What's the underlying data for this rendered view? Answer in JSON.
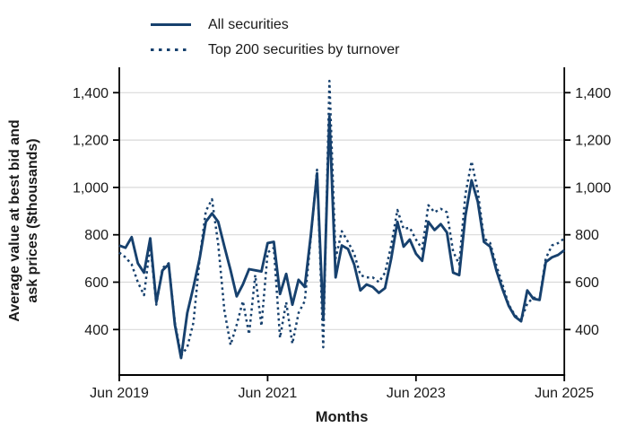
{
  "legend": [
    {
      "label": "All securities",
      "style": "solid"
    },
    {
      "label": "Top 200 securities by turnover",
      "style": "dotted"
    }
  ],
  "y_axis": {
    "title_line1": "Average value at best bid and",
    "title_line2": "ask prices ($thousands)",
    "ticks": [
      {
        "value": 400,
        "label": "400"
      },
      {
        "value": 600,
        "label": "600"
      },
      {
        "value": 800,
        "label": "800"
      },
      {
        "value": 1000,
        "label": "1,000"
      },
      {
        "value": 1200,
        "label": "1,200"
      },
      {
        "value": 1400,
        "label": "1,400"
      }
    ]
  },
  "x_axis": {
    "title": "Months",
    "ticks": [
      {
        "index": 0,
        "label": "Jun 2019"
      },
      {
        "index": 24,
        "label": "Jun 2021"
      },
      {
        "index": 48,
        "label": "Jun 2023"
      },
      {
        "index": 72,
        "label": "Jun 2025"
      }
    ]
  },
  "colors": {
    "line": "#17416e",
    "grid": "#d9d9d9",
    "axis": "#000000",
    "text": "#1a1a1a"
  },
  "chart_data": {
    "type": "line",
    "title": "",
    "xlabel": "Months",
    "ylabel": "Average value at best bid and ask prices ($thousands)",
    "x_start": "Jun 2019",
    "x_end": "Jun 2025",
    "x_frequency": "monthly",
    "n_points": 73,
    "ylim": [
      250,
      1500
    ],
    "y_ticks": [
      400,
      600,
      800,
      1000,
      1200,
      1400
    ],
    "grid": "horizontal",
    "legend_position": "top-left",
    "series": [
      {
        "name": "All securities",
        "line_style": "solid",
        "values": [
          755,
          745,
          790,
          680,
          640,
          785,
          515,
          650,
          675,
          420,
          280,
          470,
          580,
          700,
          855,
          890,
          855,
          750,
          650,
          540,
          590,
          655,
          650,
          645,
          765,
          770,
          550,
          635,
          505,
          610,
          580,
          800,
          1060,
          440,
          1300,
          620,
          755,
          740,
          675,
          565,
          590,
          580,
          555,
          575,
          700,
          855,
          750,
          780,
          720,
          690,
          855,
          820,
          845,
          810,
          640,
          630,
          880,
          1030,
          940,
          770,
          750,
          650,
          570,
          500,
          455,
          435,
          565,
          530,
          525,
          685,
          705,
          715,
          735
        ]
      },
      {
        "name": "Top 200 securities by turnover",
        "line_style": "dotted",
        "values": [
          725,
          705,
          675,
          600,
          545,
          760,
          505,
          660,
          680,
          430,
          290,
          325,
          430,
          700,
          900,
          950,
          760,
          480,
          335,
          420,
          520,
          380,
          630,
          415,
          725,
          745,
          365,
          515,
          340,
          470,
          520,
          790,
          1075,
          325,
          1450,
          700,
          815,
          770,
          720,
          630,
          620,
          620,
          600,
          640,
          755,
          905,
          825,
          830,
          780,
          740,
          925,
          895,
          910,
          895,
          730,
          675,
          970,
          1110,
          985,
          785,
          765,
          670,
          590,
          505,
          460,
          440,
          510,
          535,
          530,
          700,
          755,
          765,
          785
        ]
      }
    ]
  }
}
